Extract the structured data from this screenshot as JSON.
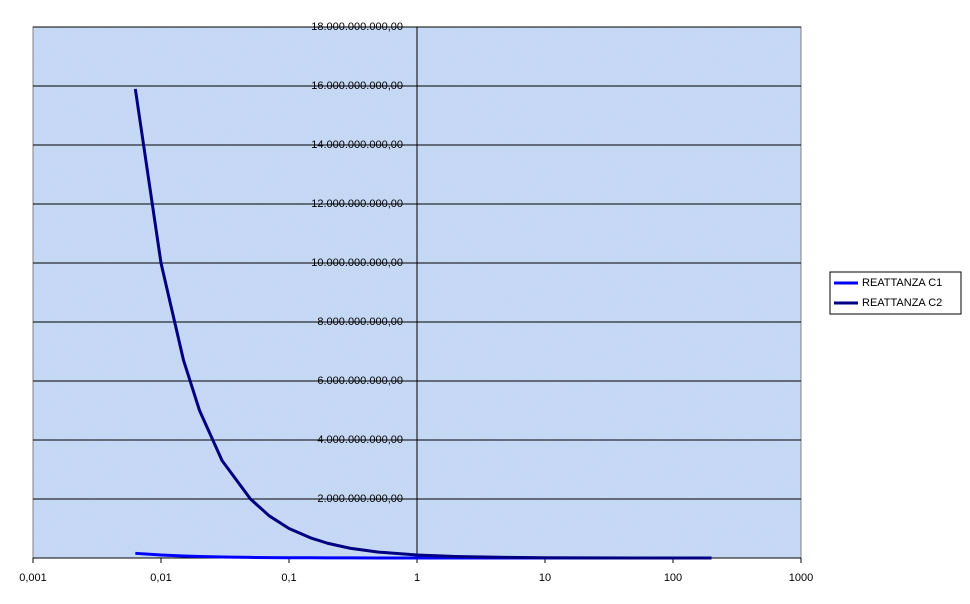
{
  "chart_data": {
    "type": "line",
    "log_x": true,
    "grid": true,
    "legend": "right",
    "x": [
      0.0063,
      0.01,
      0.015,
      0.02,
      0.03,
      0.05,
      0.07,
      0.1,
      0.15,
      0.2,
      0.3,
      0.5,
      1,
      2,
      5,
      10,
      20,
      50,
      100,
      200
    ],
    "series": [
      {
        "name": "REATTANZA C1",
        "color": "#0000ff",
        "values": [
          159000000,
          100000000,
          67000000,
          50000000,
          33000000,
          20000000,
          14000000,
          10000000,
          6700000,
          5000000,
          3300000,
          2000000,
          1000000,
          500000,
          200000,
          100000,
          50000,
          20000,
          10000,
          5000
        ]
      },
      {
        "name": "REATTANZA C2",
        "color": "#000080",
        "values": [
          15900000000,
          10000000000,
          6700000000,
          5000000000,
          3300000000,
          2000000000,
          1430000000,
          1000000000,
          670000000,
          500000000,
          330000000,
          200000000,
          100000000,
          50000000,
          20000000,
          10000000,
          5000000,
          2000000,
          1000000,
          500000
        ]
      }
    ],
    "xlim": [
      0.001,
      1000
    ],
    "xticks": [
      {
        "value": 0.001,
        "label": "0,001"
      },
      {
        "value": 0.01,
        "label": "0,01"
      },
      {
        "value": 0.1,
        "label": "0,1"
      },
      1,
      10,
      100,
      1000
    ],
    "ylim": [
      0,
      18000000000
    ],
    "yticks": [
      {
        "value": 2000000000,
        "label": "2.000.000.000,00"
      },
      {
        "value": 4000000000,
        "label": "4.000.000.000,00"
      },
      {
        "value": 6000000000,
        "label": "6.000.000.000,00"
      },
      {
        "value": 8000000000,
        "label": "8.000.000.000,00"
      },
      {
        "value": 10000000000,
        "label": "10.000.000.000,00"
      },
      {
        "value": 12000000000,
        "label": "12.000.000.000,00"
      },
      {
        "value": 14000000000,
        "label": "14.000.000.000,00"
      },
      {
        "value": 16000000000,
        "label": "16.000.000.000,00"
      },
      {
        "value": 18000000000,
        "label": "18.000.000.000,00"
      }
    ]
  }
}
